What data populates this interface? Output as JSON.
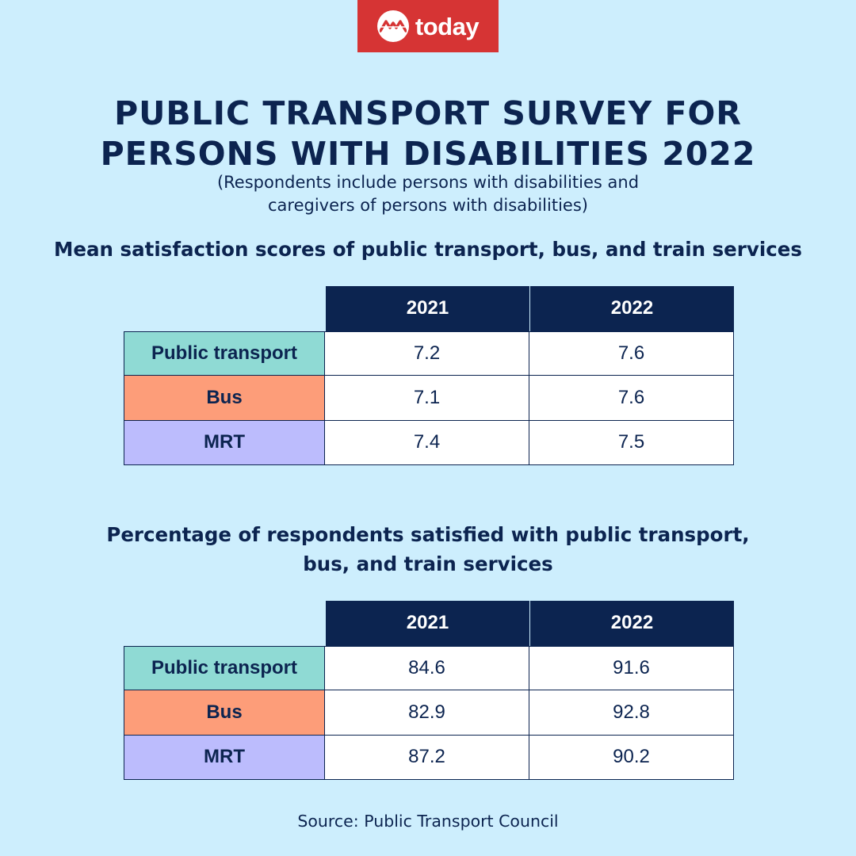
{
  "brand": {
    "logo_text": "today",
    "logo_color": "#d63434",
    "icon": "today-logo-icon"
  },
  "header": {
    "title_line1": "PUBLIC TRANSPORT SURVEY FOR",
    "title_line2": "PERSONS WITH DISABILITIES 2022",
    "subtitle_line1": "(Respondents include persons with disabilities and",
    "subtitle_line2": "caregivers of persons with disabilities)"
  },
  "colors": {
    "background": "#cdeefd",
    "navy": "#0c2450",
    "public_transport": "#8fdad4",
    "bus": "#fd9d79",
    "mrt": "#bcbcfd"
  },
  "chart_data": [
    {
      "type": "table",
      "title_line1": "Mean satisfaction scores of public transport, bus, and train services",
      "columns": [
        "2021",
        "2022"
      ],
      "rows": [
        {
          "label": "Public transport",
          "values": [
            "7.2",
            "7.6"
          ],
          "color": "#8fdad4"
        },
        {
          "label": "Bus",
          "values": [
            "7.1",
            "7.6"
          ],
          "color": "#fd9d79"
        },
        {
          "label": "MRT",
          "values": [
            "7.4",
            "7.5"
          ],
          "color": "#bcbcfd"
        }
      ]
    },
    {
      "type": "table",
      "title_line1": "Percentage of respondents satisfied with public transport,",
      "title_line2": "bus, and train services",
      "columns": [
        "2021",
        "2022"
      ],
      "rows": [
        {
          "label": "Public transport",
          "values": [
            "84.6",
            "91.6"
          ],
          "color": "#8fdad4"
        },
        {
          "label": "Bus",
          "values": [
            "82.9",
            "92.8"
          ],
          "color": "#fd9d79"
        },
        {
          "label": "MRT",
          "values": [
            "87.2",
            "90.2"
          ],
          "color": "#bcbcfd"
        }
      ]
    }
  ],
  "footer": {
    "source": "Source: Public Transport Council"
  }
}
